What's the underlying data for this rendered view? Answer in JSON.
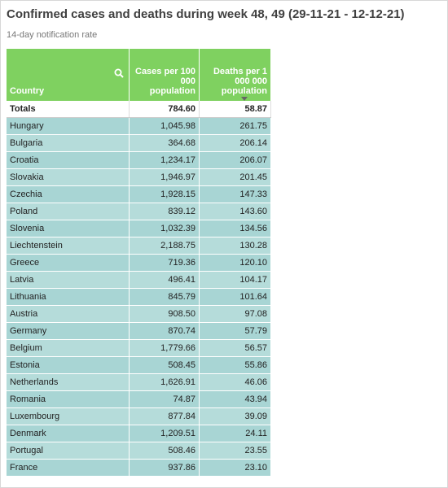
{
  "header": {
    "title": "Confirmed cases and deaths during week 48, 49 (29-11-21 - 12-12-21)",
    "subtitle": "14-day notification rate"
  },
  "table": {
    "columns": [
      "Country",
      "Cases per 100 000 population",
      "Deaths per 1 000 000 population"
    ],
    "totals": [
      "Totals",
      "784.60",
      "58.87"
    ],
    "rows": [
      [
        "Hungary",
        "1,045.98",
        "261.75"
      ],
      [
        "Bulgaria",
        "364.68",
        "206.14"
      ],
      [
        "Croatia",
        "1,234.17",
        "206.07"
      ],
      [
        "Slovakia",
        "1,946.97",
        "201.45"
      ],
      [
        "Czechia",
        "1,928.15",
        "147.33"
      ],
      [
        "Poland",
        "839.12",
        "143.60"
      ],
      [
        "Slovenia",
        "1,032.39",
        "134.56"
      ],
      [
        "Liechtenstein",
        "2,188.75",
        "130.28"
      ],
      [
        "Greece",
        "719.36",
        "120.10"
      ],
      [
        "Latvia",
        "496.41",
        "104.17"
      ],
      [
        "Lithuania",
        "845.79",
        "101.64"
      ],
      [
        "Austria",
        "908.50",
        "97.08"
      ],
      [
        "Germany",
        "870.74",
        "57.79"
      ],
      [
        "Belgium",
        "1,779.66",
        "56.57"
      ],
      [
        "Estonia",
        "508.45",
        "55.86"
      ],
      [
        "Netherlands",
        "1,626.91",
        "46.06"
      ],
      [
        "Romania",
        "74.87",
        "43.94"
      ],
      [
        "Luxembourg",
        "877.84",
        "39.09"
      ],
      [
        "Denmark",
        "1,209.51",
        "24.11"
      ],
      [
        "Portugal",
        "508.46",
        "23.55"
      ],
      [
        "France",
        "937.86",
        "23.10"
      ]
    ]
  }
}
